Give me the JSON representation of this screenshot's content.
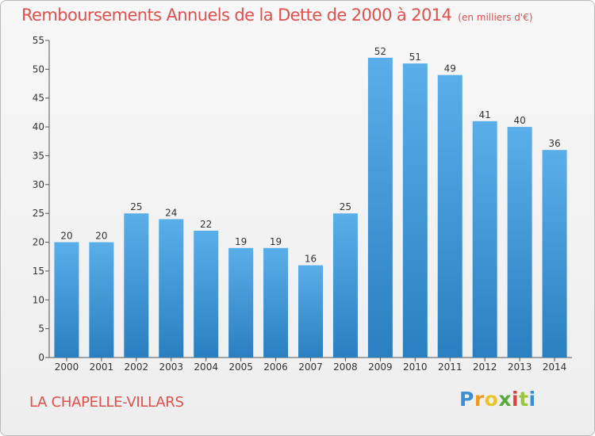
{
  "chart_data": {
    "type": "bar",
    "title": "Remboursements Annuels de la Dette de 2000 à 2014",
    "unit_note": "(en milliers d'€)",
    "categories": [
      "2000",
      "2001",
      "2002",
      "2003",
      "2004",
      "2005",
      "2006",
      "2007",
      "2008",
      "2009",
      "2010",
      "2011",
      "2012",
      "2013",
      "2014"
    ],
    "values": [
      20,
      20,
      25,
      24,
      22,
      19,
      19,
      16,
      25,
      52,
      51,
      49,
      41,
      40,
      36
    ],
    "ylim": [
      0,
      55
    ],
    "yticks": [
      0,
      5,
      10,
      15,
      20,
      25,
      30,
      35,
      40,
      45,
      50,
      55
    ],
    "grid": false,
    "bar_color_light": "#5aaee9",
    "bar_color_dark": "#2a7fc0"
  },
  "location": "LA CHAPELLE-VILLARS",
  "logo": {
    "letters": [
      "P",
      "r",
      "o",
      "x",
      "i",
      "t",
      "i"
    ],
    "colors": [
      "#3a8fd8",
      "#f19a22",
      "#e7c52a",
      "#5aa93a",
      "#d6453c",
      "#9bc43f",
      "#3a8fd8"
    ]
  }
}
